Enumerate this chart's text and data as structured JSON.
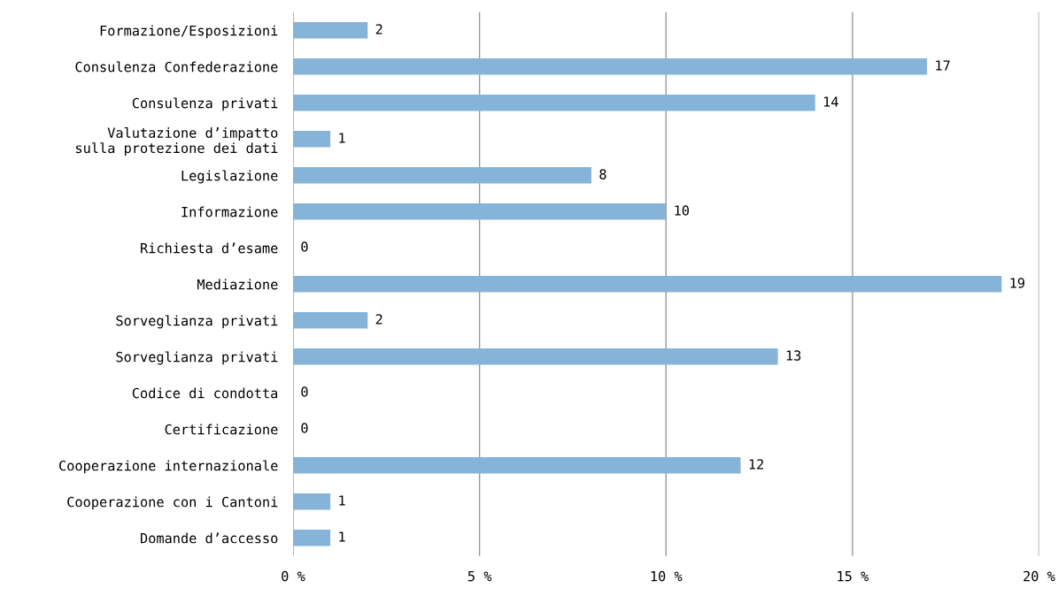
{
  "chart_data": {
    "type": "bar",
    "orientation": "horizontal",
    "categories": [
      "Formazione/Esposizioni",
      "Consulenza Confederazione",
      "Consulenza privati",
      "Valutazione d’impatto\nsulla protezione dei dati",
      "Legislazione",
      "Informazione",
      "Richiesta d’esame",
      "Mediazione",
      "Sorveglianza privati",
      "Sorveglianza privati",
      "Codice di condotta",
      "Certificazione",
      "Cooperazione internazionale",
      "Cooperazione con i Cantoni",
      "Domande d’accesso"
    ],
    "values": [
      2,
      17,
      14,
      1,
      8,
      10,
      0,
      19,
      2,
      13,
      0,
      0,
      12,
      1,
      1
    ],
    "color": "#85b4d8",
    "xlim": [
      0,
      20
    ],
    "xticks": [
      {
        "value": 0,
        "label": "0 %"
      },
      {
        "value": 5,
        "label": "5 %"
      },
      {
        "value": 10,
        "label": "10 %"
      },
      {
        "value": 15,
        "label": "15 %"
      },
      {
        "value": 20,
        "label": "20 %"
      }
    ],
    "grid": "x",
    "data_labels": true
  }
}
